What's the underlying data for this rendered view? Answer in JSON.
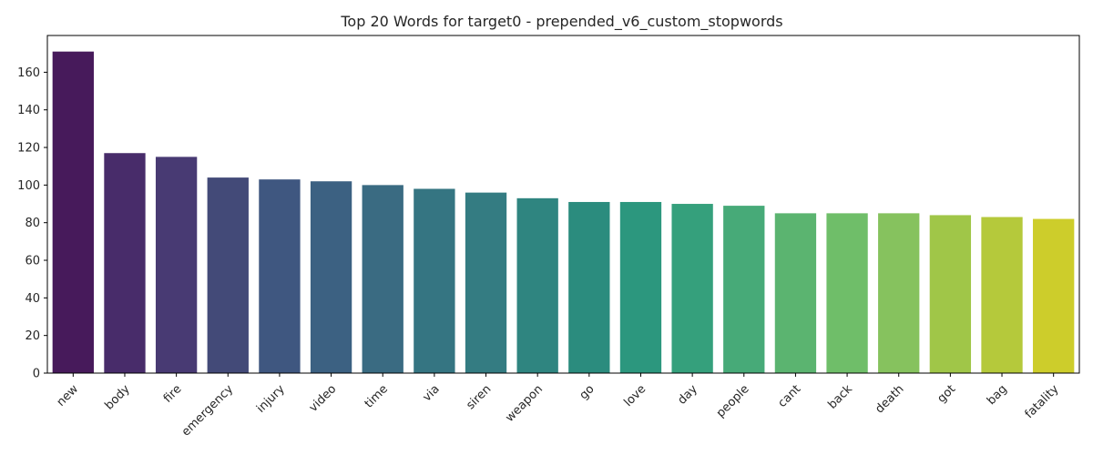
{
  "chart_data": {
    "type": "bar",
    "title": "Top 20 Words for target0 - prepended_v6_custom_stopwords",
    "xlabel": "",
    "ylabel": "",
    "categories": [
      "new",
      "body",
      "fire",
      "emergency",
      "injury",
      "video",
      "time",
      "via",
      "siren",
      "weapon",
      "go",
      "love",
      "day",
      "people",
      "cant",
      "back",
      "death",
      "got",
      "bag",
      "fatality"
    ],
    "values": [
      171,
      117,
      115,
      104,
      103,
      102,
      100,
      98,
      96,
      93,
      91,
      91,
      90,
      89,
      85,
      85,
      85,
      84,
      83,
      82
    ],
    "colors": [
      "#471a5b",
      "#482c6a",
      "#483a73",
      "#434a78",
      "#3f5780",
      "#3c6182",
      "#3a6b82",
      "#357582",
      "#347c82",
      "#2f8580",
      "#2b8c7e",
      "#2c977e",
      "#35a07c",
      "#47aa78",
      "#5bb470",
      "#6fbe69",
      "#86c25e",
      "#a0c648",
      "#b5c93b",
      "#cdcd2b"
    ],
    "yticks": [
      0,
      20,
      40,
      60,
      80,
      100,
      120,
      140,
      160
    ],
    "ylim": [
      0,
      179.55
    ],
    "grid": false,
    "legend": "none"
  }
}
